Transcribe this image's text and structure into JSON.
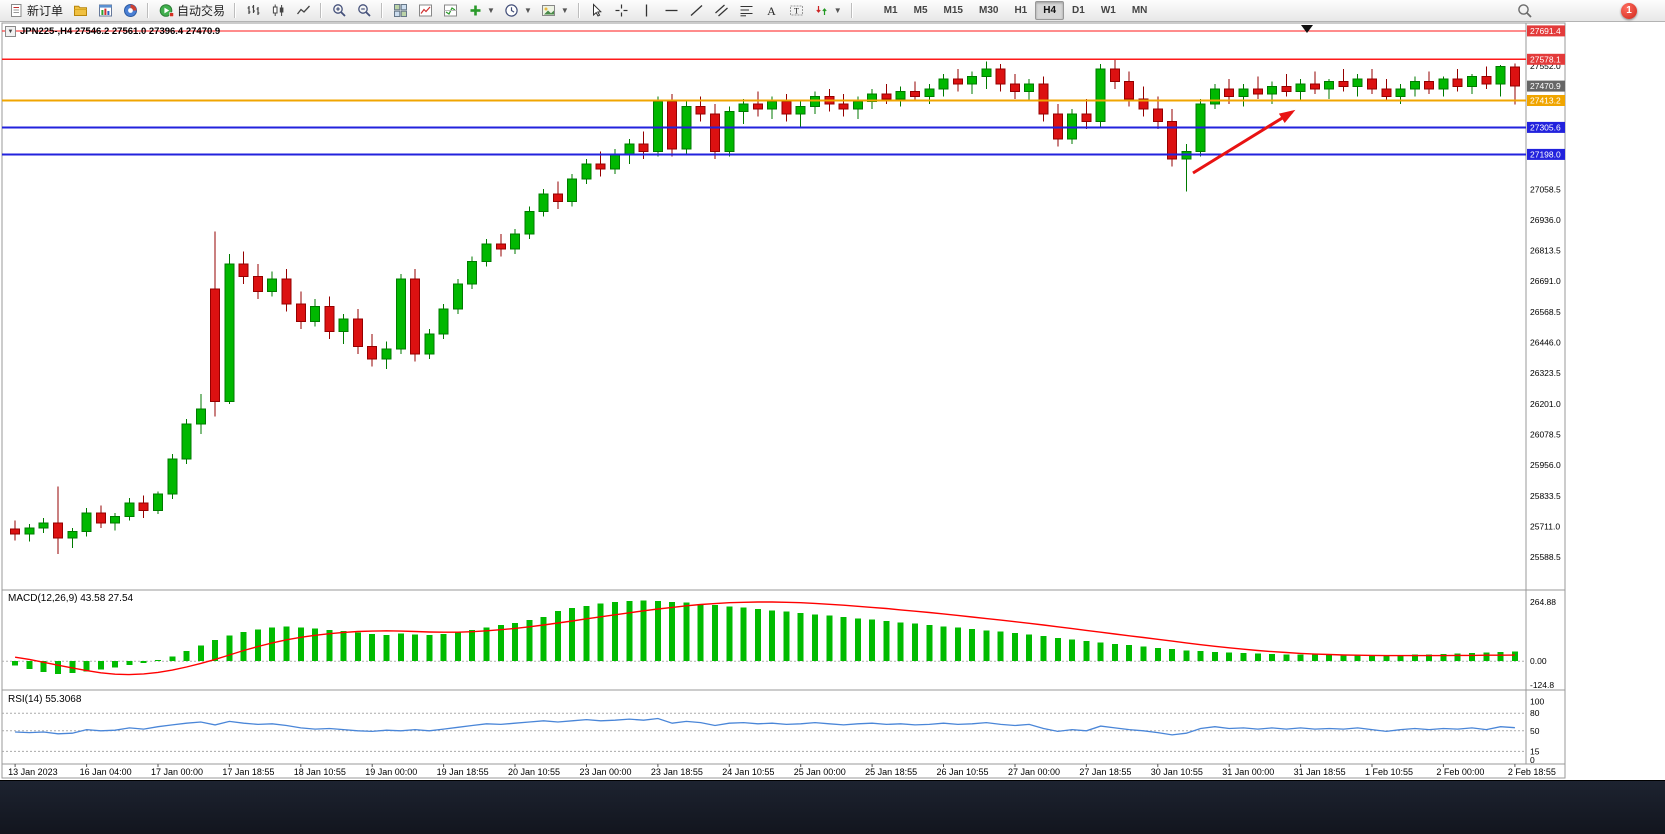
{
  "toolbar": {
    "new_order_label": "新订单",
    "auto_trading_label": "自动交易",
    "timeframes": [
      "M1",
      "M5",
      "M15",
      "M30",
      "H1",
      "H4",
      "D1",
      "W1",
      "MN"
    ],
    "active_timeframe": "H4",
    "notification_count": "1"
  },
  "chart_data": [
    {
      "type": "candlestick",
      "title": "JPN225-,H4 27546.2 27561.0 27396.4 27470.9",
      "symbol": "JPN225-",
      "timeframe": "H4",
      "current_bar": {
        "open": 27546.2,
        "high": 27561.0,
        "low": 27396.4,
        "close": 27470.9
      },
      "ylim": [
        25465,
        27719
      ],
      "bull_color": "#00b800",
      "bear_color": "#dc1111",
      "ohlc": [
        [
          25700,
          25735,
          25655,
          25680
        ],
        [
          25680,
          25720,
          25650,
          25705
        ],
        [
          25705,
          25745,
          25685,
          25725
        ],
        [
          25725,
          25870,
          25600,
          25665
        ],
        [
          25665,
          25705,
          25625,
          25690
        ],
        [
          25690,
          25785,
          25670,
          25765
        ],
        [
          25765,
          25795,
          25705,
          25725
        ],
        [
          25725,
          25765,
          25695,
          25750
        ],
        [
          25750,
          25825,
          25735,
          25805
        ],
        [
          25805,
          25835,
          25745,
          25775
        ],
        [
          25775,
          25850,
          25760,
          25840
        ],
        [
          25840,
          26000,
          25820,
          25980
        ],
        [
          25980,
          26140,
          25960,
          26120
        ],
        [
          26120,
          26240,
          26080,
          26180
        ],
        [
          26660,
          26890,
          26150,
          26210
        ],
        [
          26210,
          26800,
          26200,
          26760
        ],
        [
          26760,
          26810,
          26680,
          26710
        ],
        [
          26710,
          26760,
          26620,
          26650
        ],
        [
          26650,
          26730,
          26630,
          26700
        ],
        [
          26700,
          26740,
          26570,
          26600
        ],
        [
          26600,
          26650,
          26500,
          26530
        ],
        [
          26530,
          26620,
          26510,
          26590
        ],
        [
          26590,
          26630,
          26460,
          26490
        ],
        [
          26490,
          26560,
          26440,
          26540
        ],
        [
          26540,
          26580,
          26400,
          26430
        ],
        [
          26430,
          26480,
          26350,
          26380
        ],
        [
          26380,
          26450,
          26340,
          26420
        ],
        [
          26420,
          26720,
          26400,
          26700
        ],
        [
          26700,
          26740,
          26370,
          26400
        ],
        [
          26400,
          26500,
          26380,
          26480
        ],
        [
          26480,
          26600,
          26460,
          26580
        ],
        [
          26580,
          26700,
          26560,
          26680
        ],
        [
          26680,
          26790,
          26660,
          26770
        ],
        [
          26770,
          26860,
          26750,
          26840
        ],
        [
          26840,
          26880,
          26790,
          26820
        ],
        [
          26820,
          26900,
          26800,
          26880
        ],
        [
          26880,
          26990,
          26860,
          26970
        ],
        [
          26970,
          27060,
          26950,
          27040
        ],
        [
          27040,
          27090,
          26980,
          27010
        ],
        [
          27010,
          27120,
          26990,
          27100
        ],
        [
          27100,
          27180,
          27080,
          27160
        ],
        [
          27160,
          27210,
          27110,
          27140
        ],
        [
          27140,
          27220,
          27120,
          27200
        ],
        [
          27200,
          27260,
          27160,
          27240
        ],
        [
          27240,
          27290,
          27180,
          27210
        ],
        [
          27210,
          27430,
          27190,
          27410
        ],
        [
          27410,
          27440,
          27190,
          27220
        ],
        [
          27220,
          27410,
          27200,
          27390
        ],
        [
          27390,
          27430,
          27330,
          27360
        ],
        [
          27360,
          27400,
          27180,
          27210
        ],
        [
          27210,
          27390,
          27190,
          27370
        ],
        [
          27370,
          27420,
          27320,
          27400
        ],
        [
          27400,
          27450,
          27350,
          27380
        ],
        [
          27380,
          27430,
          27340,
          27410
        ],
        [
          27410,
          27440,
          27330,
          27360
        ],
        [
          27360,
          27410,
          27310,
          27390
        ],
        [
          27390,
          27450,
          27360,
          27430
        ],
        [
          27430,
          27460,
          27370,
          27400
        ],
        [
          27400,
          27440,
          27350,
          27380
        ],
        [
          27380,
          27430,
          27340,
          27410
        ],
        [
          27410,
          27460,
          27380,
          27440
        ],
        [
          27440,
          27480,
          27400,
          27420
        ],
        [
          27420,
          27470,
          27390,
          27450
        ],
        [
          27450,
          27490,
          27410,
          27430
        ],
        [
          27430,
          27480,
          27400,
          27460
        ],
        [
          27460,
          27520,
          27430,
          27500
        ],
        [
          27500,
          27540,
          27450,
          27480
        ],
        [
          27480,
          27530,
          27440,
          27510
        ],
        [
          27510,
          27570,
          27460,
          27540
        ],
        [
          27540,
          27560,
          27450,
          27480
        ],
        [
          27480,
          27520,
          27420,
          27450
        ],
        [
          27450,
          27500,
          27410,
          27480
        ],
        [
          27480,
          27510,
          27330,
          27360
        ],
        [
          27360,
          27400,
          27230,
          27260
        ],
        [
          27260,
          27380,
          27240,
          27360
        ],
        [
          27360,
          27420,
          27300,
          27330
        ],
        [
          27330,
          27560,
          27310,
          27540
        ],
        [
          27540,
          27580,
          27460,
          27490
        ],
        [
          27490,
          27530,
          27390,
          27420
        ],
        [
          27420,
          27470,
          27350,
          27380
        ],
        [
          27380,
          27430,
          27300,
          27330
        ],
        [
          27330,
          27380,
          27150,
          27180
        ],
        [
          27180,
          27240,
          27050,
          27210
        ],
        [
          27210,
          27420,
          27190,
          27400
        ],
        [
          27400,
          27480,
          27380,
          27460
        ],
        [
          27460,
          27500,
          27400,
          27430
        ],
        [
          27430,
          27480,
          27390,
          27460
        ],
        [
          27460,
          27510,
          27420,
          27440
        ],
        [
          27440,
          27490,
          27400,
          27470
        ],
        [
          27470,
          27520,
          27430,
          27450
        ],
        [
          27450,
          27500,
          27410,
          27480
        ],
        [
          27480,
          27530,
          27440,
          27460
        ],
        [
          27460,
          27500,
          27420,
          27490
        ],
        [
          27490,
          27540,
          27450,
          27470
        ],
        [
          27470,
          27520,
          27430,
          27500
        ],
        [
          27500,
          27540,
          27440,
          27460
        ],
        [
          27460,
          27500,
          27410,
          27430
        ],
        [
          27430,
          27480,
          27400,
          27460
        ],
        [
          27460,
          27510,
          27430,
          27490
        ],
        [
          27490,
          27530,
          27440,
          27460
        ],
        [
          27460,
          27510,
          27430,
          27500
        ],
        [
          27500,
          27540,
          27450,
          27470
        ],
        [
          27470,
          27520,
          27440,
          27510
        ],
        [
          27510,
          27550,
          27460,
          27480
        ],
        [
          27480,
          27555,
          27430,
          27550
        ],
        [
          27546.2,
          27561.0,
          27396.4,
          27470.9
        ]
      ],
      "time_labels": [
        "13 Jan 2023",
        "16 Jan 04:00",
        "17 Jan 00:00",
        "17 Jan 18:55",
        "18 Jan 10:55",
        "19 Jan 00:00",
        "19 Jan 18:55",
        "20 Jan 10:55",
        "23 Jan 00:00",
        "23 Jan 18:55",
        "24 Jan 10:55",
        "25 Jan 00:00",
        "25 Jan 18:55",
        "26 Jan 10:55",
        "27 Jan 00:00",
        "27 Jan 18:55",
        "30 Jan 10:55",
        "31 Jan 00:00",
        "31 Jan 18:55",
        "1 Feb 10:55",
        "2 Feb 00:00",
        "2 Feb 18:55"
      ],
      "y_axis_ticks": [
        "27552.0",
        "27058.5",
        "26936.0",
        "26813.5",
        "26691.0",
        "26568.5",
        "26446.0",
        "26323.5",
        "26201.0",
        "26078.5",
        "25956.0",
        "25833.5",
        "25711.0",
        "25588.5"
      ],
      "price_tags": [
        {
          "label": "27691.4",
          "price": 27691.4,
          "bg": "#e33b3b",
          "line_color": "#ff1a1a",
          "line_width": 1.2
        },
        {
          "label": "27578.1",
          "price": 27578.1,
          "bg": "#e33b3b",
          "line_color": "#ff1a1a",
          "line_width": 1.2
        },
        {
          "label": "27470.9",
          "price": 27470.9,
          "bg": "#666666",
          "line_color": null,
          "line_width": 0
        },
        {
          "label": "27413.2",
          "price": 27413.2,
          "bg": "#f0a500",
          "line_color": "#f0a500",
          "line_width": 2
        },
        {
          "label": "27305.6",
          "price": 27305.6,
          "bg": "#2222dd",
          "line_color": "#2222dd",
          "line_width": 2
        },
        {
          "label": "27198.0",
          "price": 27198.0,
          "bg": "#2222dd",
          "line_color": "#2222dd",
          "line_width": 2
        }
      ],
      "annotations": {
        "trend_arrow": {
          "from": [
            1193,
            151
          ],
          "to": [
            1292,
            90
          ],
          "color": "#e81212"
        },
        "top_marker": {
          "x": 1307,
          "color": "#111111"
        }
      }
    },
    {
      "type": "bar",
      "label": "MACD(12,26,9) 43.58 27.54",
      "name": "MACD",
      "params": "12,26,9",
      "current_values": [
        "43.58",
        "27.54"
      ],
      "ylim": [
        -120,
        310
      ],
      "y_ticks": [
        "264.88",
        "0.00",
        "-124.8"
      ],
      "histogram_color": "#00bb00",
      "signal_color": "#ff0000",
      "histogram": [
        -20,
        -35,
        -48,
        -58,
        -52,
        -45,
        -38,
        -28,
        -18,
        -8,
        5,
        22,
        45,
        70,
        95,
        115,
        130,
        142,
        150,
        155,
        152,
        146,
        140,
        135,
        128,
        122,
        118,
        125,
        120,
        118,
        122,
        130,
        140,
        152,
        162,
        172,
        185,
        198,
        225,
        238,
        248,
        258,
        265,
        270,
        272,
        270,
        266,
        262,
        257,
        252,
        246,
        240,
        234,
        228,
        222,
        216,
        210,
        204,
        198,
        192,
        186,
        180,
        174,
        168,
        162,
        156,
        150,
        144,
        138,
        132,
        126,
        119,
        112,
        104,
        97,
        90,
        84,
        78,
        72,
        66,
        60,
        54,
        49,
        45,
        42,
        39,
        37,
        35,
        33,
        31,
        30,
        29,
        29,
        28,
        28,
        27,
        27,
        28,
        29,
        30,
        32,
        34,
        36,
        38,
        41,
        43.58
      ],
      "signal": [
        18,
        8,
        -5,
        -18,
        -30,
        -42,
        -52,
        -58,
        -60,
        -57,
        -50,
        -40,
        -26,
        -10,
        8,
        28,
        48,
        66,
        82,
        96,
        107,
        116,
        123,
        129,
        133,
        135,
        136,
        135,
        133,
        131,
        130,
        130,
        132,
        136,
        141,
        147,
        154,
        162,
        171,
        180,
        190,
        199,
        208,
        217,
        226,
        234,
        241,
        248,
        254,
        258,
        262,
        264,
        265,
        265,
        264,
        262,
        259,
        255,
        251,
        246,
        241,
        236,
        230,
        224,
        218,
        212,
        205,
        198,
        191,
        184,
        177,
        170,
        162,
        154,
        146,
        138,
        130,
        122,
        114,
        106,
        98,
        90,
        82,
        74,
        67,
        60,
        54,
        48,
        43,
        39,
        35,
        32,
        30,
        28,
        27,
        26,
        25,
        25,
        25,
        25,
        25,
        26,
        26,
        27,
        27,
        27.54
      ]
    },
    {
      "type": "line",
      "label": "RSI(14) 55.3068",
      "name": "RSI",
      "period": 14,
      "current": 55.3068,
      "ylim": [
        -3,
        116
      ],
      "levels": [
        80,
        50,
        15
      ],
      "y_ticks": [
        "100",
        "80",
        "50",
        "15",
        "0"
      ],
      "line_color": "#4a86d8",
      "values": [
        48,
        47,
        48,
        45,
        46,
        52,
        50,
        51,
        55,
        53,
        57,
        60,
        63,
        65,
        60,
        66,
        63,
        61,
        62,
        59,
        55,
        53,
        54,
        52,
        50,
        49,
        51,
        50,
        52,
        50,
        53,
        56,
        59,
        62,
        61,
        63,
        65,
        67,
        65,
        67,
        69,
        67,
        68,
        70,
        68,
        71,
        63,
        66,
        64,
        59,
        63,
        64,
        62,
        63,
        61,
        62,
        64,
        62,
        60,
        62,
        63,
        61,
        62,
        60,
        61,
        63,
        61,
        62,
        64,
        61,
        59,
        61,
        54,
        49,
        52,
        50,
        58,
        55,
        52,
        50,
        47,
        43,
        46,
        54,
        57,
        54,
        55,
        53,
        55,
        53,
        55,
        53,
        54,
        53,
        55,
        52,
        49,
        52,
        54,
        52,
        54,
        53,
        55,
        52,
        57,
        55.31
      ]
    }
  ]
}
